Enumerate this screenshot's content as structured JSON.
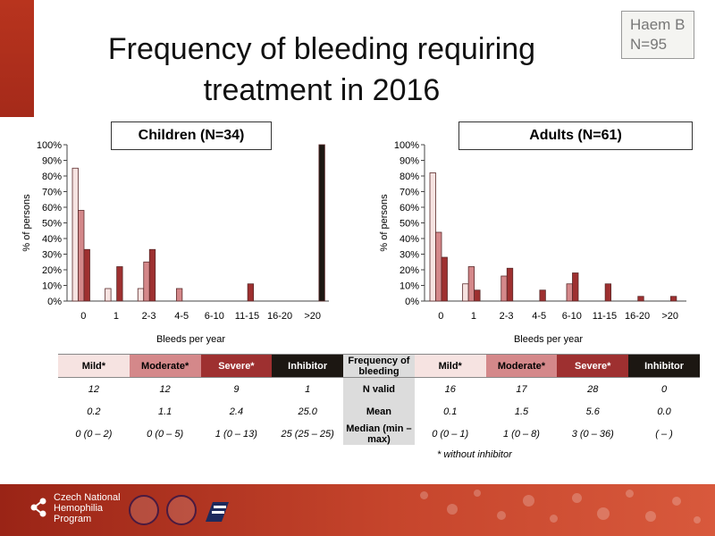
{
  "title_line1": "Frequency of bleeding requiring",
  "title_line2": "treatment in 2016",
  "badge_line1": "Haem B",
  "badge_line2": "N=95",
  "chart_data": [
    {
      "type": "bar",
      "title": "Children (N=34)",
      "xlabel": "Bleeds per year",
      "ylabel": "% of persons",
      "ylim": [
        0,
        100
      ],
      "yticks": [
        "0%",
        "10%",
        "20%",
        "30%",
        "40%",
        "50%",
        "60%",
        "70%",
        "80%",
        "90%",
        "100%"
      ],
      "categories": [
        "0",
        "1",
        "2-3",
        "4-5",
        "6-10",
        "11-15",
        "16-20",
        ">20"
      ],
      "series": [
        {
          "key": "mild",
          "color": "#f6e3e1",
          "values": [
            85,
            8,
            8,
            0,
            0,
            0,
            0,
            0
          ]
        },
        {
          "key": "moderate",
          "color": "#d4888a",
          "values": [
            58,
            0,
            25,
            8,
            0,
            0,
            0,
            0
          ]
        },
        {
          "key": "severe",
          "color": "#9e3030",
          "values": [
            33,
            22,
            33,
            0,
            0,
            11,
            0,
            0
          ]
        },
        {
          "key": "inhibitor",
          "color": "#1c1712",
          "values": [
            0,
            0,
            0,
            0,
            0,
            0,
            0,
            100
          ]
        }
      ]
    },
    {
      "type": "bar",
      "title": "Adults (N=61)",
      "xlabel": "Bleeds per year",
      "ylabel": "% of persons",
      "ylim": [
        0,
        100
      ],
      "yticks": [
        "0%",
        "10%",
        "20%",
        "30%",
        "40%",
        "50%",
        "60%",
        "70%",
        "80%",
        "90%",
        "100%"
      ],
      "categories": [
        "0",
        "1",
        "2-3",
        "4-5",
        "6-10",
        "11-15",
        "16-20",
        ">20"
      ],
      "series": [
        {
          "key": "mild",
          "color": "#f6e3e1",
          "values": [
            82,
            11,
            0,
            0,
            0,
            0,
            0,
            0
          ]
        },
        {
          "key": "moderate",
          "color": "#d4888a",
          "values": [
            44,
            22,
            16,
            0,
            11,
            0,
            0,
            0
          ]
        },
        {
          "key": "severe",
          "color": "#9e3030",
          "values": [
            28,
            7,
            21,
            7,
            18,
            11,
            3,
            3
          ]
        },
        {
          "key": "inhibitor",
          "color": "#1c1712",
          "values": [
            0,
            0,
            0,
            0,
            0,
            0,
            0,
            0
          ]
        }
      ]
    }
  ],
  "table": {
    "header": [
      "Mild*",
      "Moderate*",
      "Severe*",
      "Inhibitor",
      "Frequency of bleeding",
      "Mild*",
      "Moderate*",
      "Severe*",
      "Inhibitor"
    ],
    "rows": [
      [
        "12",
        "12",
        "9",
        "1",
        "N valid",
        "16",
        "17",
        "28",
        "0"
      ],
      [
        "0.2",
        "1.1",
        "2.4",
        "25.0",
        "Mean",
        "0.1",
        "1.5",
        "5.6",
        "0.0"
      ],
      [
        "0 (0 – 2)",
        "0 (0 – 5)",
        "1 (0 – 13)",
        "25 (25 – 25)",
        "Median (min – max)",
        "0 (0 – 1)",
        "1 (0 – 8)",
        "3 (0 – 36)",
        "( – )"
      ]
    ]
  },
  "footnote": "* without inhibitor",
  "footer": {
    "org_line1": "Czech National",
    "org_line2": "Hemophilia",
    "org_line3": "Program"
  }
}
